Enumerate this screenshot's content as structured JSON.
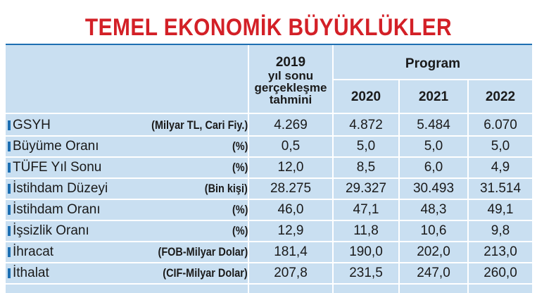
{
  "title": "TEMEL EKONOMİK BÜYÜKLÜKLER",
  "header": {
    "col2019_line1": "2019",
    "col2019_line2": "yıl sonu",
    "col2019_line3": "gerçekleşme",
    "col2019_line4": "tahmini",
    "program": "Program",
    "years": [
      "2020",
      "2021",
      "2022"
    ]
  },
  "rows": [
    {
      "label": "GSYH",
      "unit": "(Milyar TL, Cari Fiy.)",
      "values": [
        "4.269",
        "4.872",
        "5.484",
        "6.070"
      ]
    },
    {
      "label": "Büyüme Oranı",
      "unit": "(%)",
      "values": [
        "0,5",
        "5,0",
        "5,0",
        "5,0"
      ]
    },
    {
      "label": "TÜFE Yıl Sonu",
      "unit": "(%)",
      "values": [
        "12,0",
        "8,5",
        "6,0",
        "4,9"
      ]
    },
    {
      "label": "İstihdam Düzeyi",
      "unit": "(Bin kişi)",
      "values": [
        "28.275",
        "29.327",
        "30.493",
        "31.514"
      ]
    },
    {
      "label": "İstihdam Oranı",
      "unit": "(%)",
      "values": [
        "46,0",
        "47,1",
        "48,3",
        "49,1"
      ]
    },
    {
      "label": "İşsizlik Oranı",
      "unit": "(%)",
      "values": [
        "12,9",
        "11,8",
        "10,6",
        "9,8"
      ]
    },
    {
      "label": "İhracat",
      "unit": "(FOB-Milyar Dolar)",
      "values": [
        "181,4",
        "190,0",
        "202,0",
        "213,0"
      ]
    },
    {
      "label": "İthalat",
      "unit": "(CIF-Milyar Dolar)",
      "values": [
        "207,8",
        "231,5",
        "247,0",
        "260,0"
      ]
    }
  ],
  "colors": {
    "title": "#d32027",
    "table_bg": "#c9dff1",
    "accent": "#1d6fb2"
  }
}
